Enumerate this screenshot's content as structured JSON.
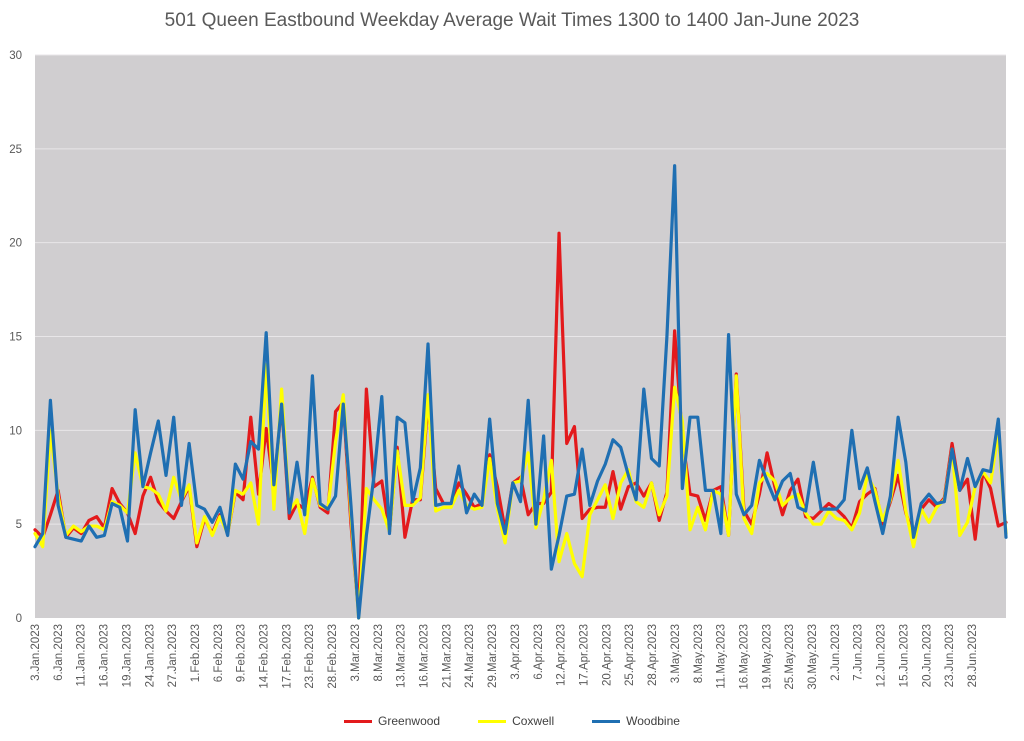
{
  "colors": {
    "plot_bg": "#d0ced0",
    "grid": "#e8e6e8"
  },
  "chart_data": {
    "type": "line",
    "title": "501 Queen Eastbound Weekday Average Wait Times 1300 to 1400 Jan-June 2023",
    "xlabel": "",
    "ylabel": "",
    "ylim": [
      0,
      30
    ],
    "yticks": [
      0,
      5,
      10,
      15,
      20,
      25,
      30
    ],
    "grid": true,
    "legend_position": "bottom",
    "x_tick_labels": [
      "3.Jan.2023",
      "6.Jan.2023",
      "11.Jan.2023",
      "16.Jan.2023",
      "19.Jan.2023",
      "24.Jan.2023",
      "27.Jan.2023",
      "1.Feb.2023",
      "6.Feb.2023",
      "9.Feb.2023",
      "14.Feb.2023",
      "17.Feb.2023",
      "23.Feb.2023",
      "28.Feb.2023",
      "3.Mar.2023",
      "8.Mar.2023",
      "13.Mar.2023",
      "16.Mar.2023",
      "21.Mar.2023",
      "24.Mar.2023",
      "29.Mar.2023",
      "3.Apr.2023",
      "6.Apr.2023",
      "12.Apr.2023",
      "17.Apr.2023",
      "20.Apr.2023",
      "25.Apr.2023",
      "28.Apr.2023",
      "3.May.2023",
      "8.May.2023",
      "11.May.2023",
      "16.May.2023",
      "19.May.2023",
      "25.May.2023",
      "30.May.2023",
      "2.Jun.2023",
      "7.Jun.2023",
      "12.Jun.2023",
      "15.Jun.2023",
      "20.Jun.2023",
      "23.Jun.2023",
      "28.Jun.2023"
    ],
    "series": [
      {
        "name": "Greenwood",
        "color": "#e31a1c",
        "values": [
          4.7,
          4.3,
          5.5,
          6.8,
          4.3,
          4.8,
          4.5,
          5.2,
          5.4,
          4.8,
          6.9,
          6.1,
          5.6,
          4.5,
          6.5,
          7.5,
          6.2,
          5.7,
          5.3,
          6.2,
          7.0,
          3.8,
          5.3,
          4.5,
          5.5,
          4.5,
          6.7,
          6.3,
          10.7,
          6.6,
          10.1,
          6.9,
          11.4,
          5.3,
          6.1,
          5.8,
          7.5,
          5.9,
          5.6,
          11.0,
          11.5,
          5.0,
          0.2,
          12.2,
          7.0,
          7.3,
          4.6,
          9.1,
          4.3,
          6.3,
          6.3,
          11.5,
          6.9,
          6.1,
          6.1,
          7.2,
          6.6,
          5.9,
          6.1,
          8.7,
          7.0,
          4.7,
          7.2,
          7.5,
          5.5,
          6.1,
          6.1,
          6.7,
          20.5,
          9.3,
          10.2,
          5.3,
          5.8,
          5.9,
          5.9,
          7.8,
          5.8,
          7.0,
          7.2,
          6.5,
          7.2,
          5.2,
          6.7,
          15.3,
          9.6,
          6.6,
          6.5,
          5.2,
          6.8,
          7.0,
          4.4,
          13.0,
          5.7,
          5.0,
          6.6,
          8.8,
          7.0,
          5.5,
          6.8,
          7.4,
          5.4,
          5.3,
          5.7,
          6.1,
          5.8,
          5.4,
          4.8,
          6.2,
          6.6,
          6.9,
          5.0,
          6.2,
          7.6,
          5.6,
          4.4,
          5.8,
          6.3,
          5.9,
          6.4,
          9.3,
          6.8,
          7.4,
          4.2,
          7.8,
          6.9,
          4.9,
          5.1
        ]
      },
      {
        "name": "Coxwell",
        "color": "#ffff00",
        "values": [
          4.5,
          3.8,
          10.0,
          6.5,
          4.4,
          4.9,
          4.6,
          4.9,
          4.9,
          4.7,
          6.2,
          6.0,
          5.6,
          8.8,
          7.0,
          6.9,
          6.6,
          5.7,
          7.5,
          6.3,
          7.1,
          4.0,
          5.4,
          4.4,
          5.4,
          4.5,
          6.8,
          6.6,
          7.2,
          5.0,
          13.5,
          5.8,
          12.2,
          5.7,
          6.3,
          4.5,
          7.4,
          6.0,
          5.8,
          9.4,
          11.9,
          5.5,
          0.0,
          6.9,
          6.3,
          5.8,
          4.6,
          8.9,
          6.0,
          6.0,
          6.4,
          11.9,
          5.7,
          5.9,
          5.9,
          6.8,
          6.0,
          5.8,
          5.9,
          8.5,
          5.8,
          4.0,
          7.2,
          7.3,
          8.8,
          4.8,
          6.3,
          8.4,
          3.0,
          4.5,
          2.9,
          2.2,
          5.5,
          6.3,
          7.1,
          5.3,
          7.2,
          7.9,
          6.2,
          5.9,
          7.2,
          5.5,
          6.5,
          12.3,
          10.5,
          4.7,
          5.9,
          4.7,
          6.8,
          6.6,
          4.4,
          12.9,
          5.3,
          4.5,
          7.2,
          7.7,
          7.3,
          6.0,
          6.4,
          6.6,
          5.6,
          5.0,
          5.0,
          5.7,
          5.3,
          5.2,
          4.7,
          5.6,
          7.6,
          6.8,
          5.2,
          6.3,
          8.4,
          5.7,
          3.8,
          5.8,
          5.1,
          5.9,
          6.3,
          9.0,
          4.4,
          5.1,
          7.0,
          7.8,
          7.2,
          9.9,
          4.5
        ]
      },
      {
        "name": "Woodbine",
        "color": "#1f6fb2",
        "values": [
          3.8,
          4.5,
          11.6,
          6.0,
          4.3,
          4.2,
          4.1,
          4.9,
          4.3,
          4.4,
          6.1,
          5.9,
          4.1,
          11.1,
          7.0,
          8.8,
          10.5,
          7.6,
          10.7,
          6.0,
          9.3,
          6.0,
          5.8,
          5.1,
          5.9,
          4.4,
          8.2,
          7.4,
          9.4,
          9.0,
          15.2,
          7.1,
          11.4,
          5.6,
          8.3,
          5.5,
          12.9,
          6.1,
          5.8,
          6.5,
          11.4,
          6.0,
          0.0,
          4.4,
          7.6,
          11.8,
          4.5,
          10.7,
          10.4,
          6.2,
          8.0,
          14.6,
          6.0,
          6.1,
          6.1,
          8.1,
          5.6,
          6.6,
          6.0,
          10.6,
          6.1,
          4.5,
          7.2,
          6.2,
          11.6,
          5.0,
          9.7,
          2.6,
          4.4,
          6.5,
          6.6,
          9.0,
          6.0,
          7.3,
          8.2,
          9.5,
          9.1,
          7.6,
          6.3,
          12.2,
          8.5,
          8.1,
          15.0,
          24.1,
          6.9,
          10.7,
          10.7,
          6.8,
          6.8,
          4.5,
          15.1,
          6.6,
          5.5,
          6.0,
          8.4,
          7.3,
          6.3,
          7.3,
          7.7,
          5.9,
          5.7,
          8.3,
          5.8,
          5.8,
          5.8,
          6.3,
          10.0,
          6.9,
          8.0,
          6.2,
          4.5,
          6.5,
          10.7,
          8.3,
          4.3,
          6.1,
          6.6,
          6.1,
          6.2,
          9.0,
          6.8,
          8.5,
          7.0,
          7.9,
          7.8,
          10.6,
          4.3
        ]
      }
    ]
  }
}
